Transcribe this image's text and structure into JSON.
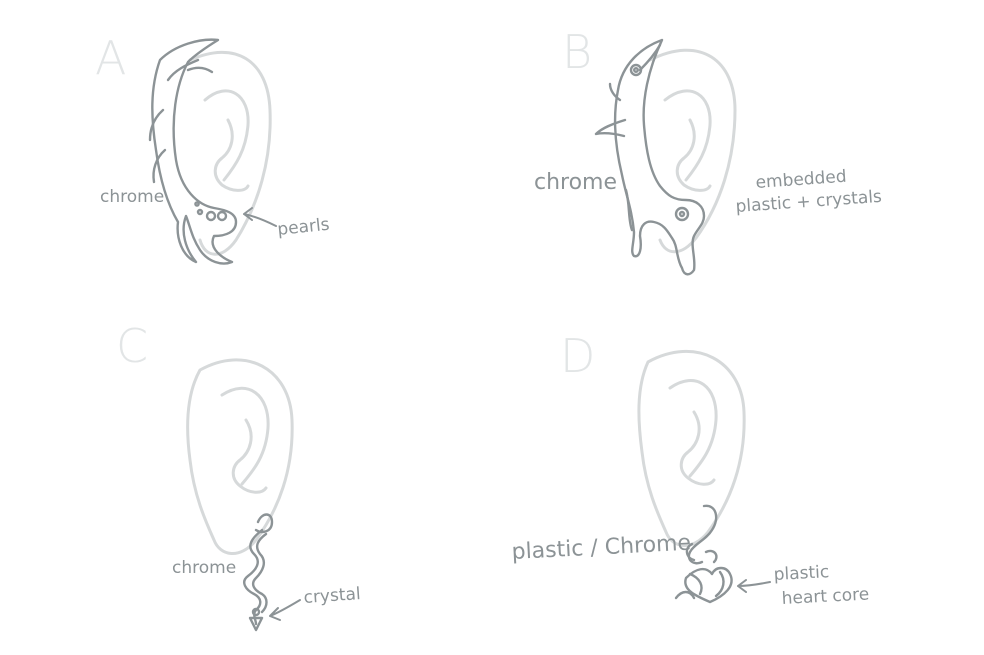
{
  "panels": [
    {
      "letter": "A",
      "labels": [
        "chrome",
        "pearls"
      ]
    },
    {
      "letter": "B",
      "labels": [
        "chrome",
        "embedded",
        "plastic + crystals"
      ]
    },
    {
      "letter": "C",
      "labels": [
        "chrome",
        "crystal"
      ]
    },
    {
      "letter": "D",
      "labels": [
        "plastic / Chrome",
        "plastic",
        "heart core"
      ]
    }
  ],
  "colors": {
    "ear_stroke": "#d6d9da",
    "jewelry_stroke": "#8c9396",
    "letter": "#e2e5e6",
    "background": "#ffffff"
  }
}
